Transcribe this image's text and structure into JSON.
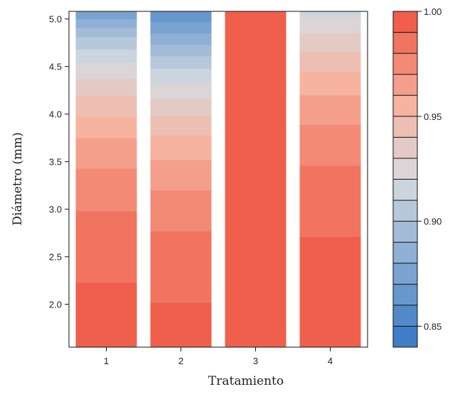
{
  "chart_data": {
    "type": "heatmap",
    "title": "",
    "xlabel": "Tratamiento",
    "ylabel": "Diámetro (mm)",
    "categories": [
      "1",
      "2",
      "3",
      "4"
    ],
    "yticks": [
      "2.0",
      "2.5",
      "3.0",
      "3.5",
      "4.0",
      "4.5",
      "5.0"
    ],
    "ylim": [
      1.55,
      5.08
    ],
    "colorbar": {
      "ticks": [
        "0.85",
        "0.90",
        "0.95",
        "1.00"
      ],
      "range": [
        0.84,
        1.0
      ],
      "levels": 16
    },
    "series": [
      {
        "name": "1",
        "bands": [
          {
            "from": 1.55,
            "to": 2.23,
            "value": 0.995
          },
          {
            "from": 2.23,
            "to": 2.98,
            "value": 0.985
          },
          {
            "from": 2.98,
            "to": 3.43,
            "value": 0.975
          },
          {
            "from": 3.43,
            "to": 3.75,
            "value": 0.965
          },
          {
            "from": 3.75,
            "to": 3.97,
            "value": 0.955
          },
          {
            "from": 3.97,
            "to": 4.2,
            "value": 0.945
          },
          {
            "from": 4.2,
            "to": 4.37,
            "value": 0.935
          },
          {
            "from": 4.37,
            "to": 4.54,
            "value": 0.925
          },
          {
            "from": 4.54,
            "to": 4.68,
            "value": 0.915
          },
          {
            "from": 4.68,
            "to": 4.81,
            "value": 0.905
          },
          {
            "from": 4.81,
            "to": 4.91,
            "value": 0.895
          },
          {
            "from": 4.91,
            "to": 5.0,
            "value": 0.885
          },
          {
            "from": 5.0,
            "to": 5.08,
            "value": 0.875
          }
        ]
      },
      {
        "name": "2",
        "bands": [
          {
            "from": 1.55,
            "to": 2.02,
            "value": 0.995
          },
          {
            "from": 2.02,
            "to": 2.77,
            "value": 0.985
          },
          {
            "from": 2.77,
            "to": 3.2,
            "value": 0.975
          },
          {
            "from": 3.2,
            "to": 3.52,
            "value": 0.965
          },
          {
            "from": 3.52,
            "to": 3.78,
            "value": 0.955
          },
          {
            "from": 3.78,
            "to": 3.98,
            "value": 0.945
          },
          {
            "from": 3.98,
            "to": 4.16,
            "value": 0.935
          },
          {
            "from": 4.16,
            "to": 4.32,
            "value": 0.925
          },
          {
            "from": 4.32,
            "to": 4.48,
            "value": 0.915
          },
          {
            "from": 4.48,
            "to": 4.61,
            "value": 0.905
          },
          {
            "from": 4.61,
            "to": 4.73,
            "value": 0.895
          },
          {
            "from": 4.73,
            "to": 4.85,
            "value": 0.885
          },
          {
            "from": 4.85,
            "to": 4.97,
            "value": 0.875
          },
          {
            "from": 4.97,
            "to": 5.08,
            "value": 0.865
          }
        ]
      },
      {
        "name": "3",
        "bands": [
          {
            "from": 1.55,
            "to": 5.08,
            "value": 0.995
          }
        ]
      },
      {
        "name": "4",
        "bands": [
          {
            "from": 1.55,
            "to": 2.71,
            "value": 0.995
          },
          {
            "from": 2.71,
            "to": 3.46,
            "value": 0.985
          },
          {
            "from": 3.46,
            "to": 3.89,
            "value": 0.975
          },
          {
            "from": 3.89,
            "to": 4.2,
            "value": 0.965
          },
          {
            "from": 4.2,
            "to": 4.45,
            "value": 0.955
          },
          {
            "from": 4.45,
            "to": 4.66,
            "value": 0.945
          },
          {
            "from": 4.66,
            "to": 4.85,
            "value": 0.935
          },
          {
            "from": 4.85,
            "to": 5.02,
            "value": 0.925
          },
          {
            "from": 5.02,
            "to": 5.08,
            "value": 0.915
          }
        ]
      }
    ]
  }
}
